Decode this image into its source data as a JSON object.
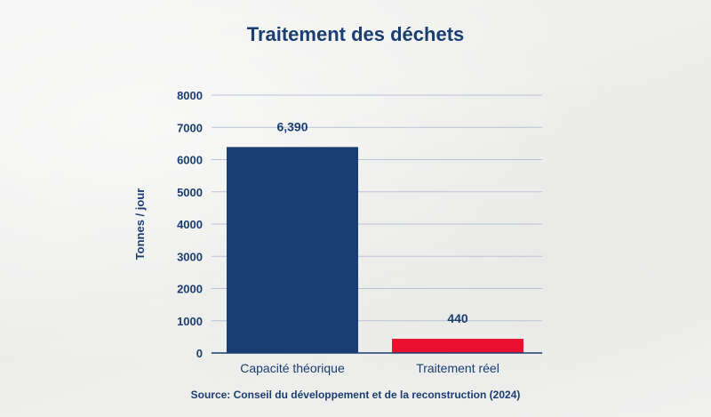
{
  "chart_data": {
    "type": "bar",
    "title": "Traitement des déchets",
    "xlabel": "",
    "ylabel": "Tonnes / jour",
    "categories": [
      "Capacité théorique",
      "Traitement réel"
    ],
    "values": [
      6390,
      440
    ],
    "value_labels": [
      "6,390",
      "440"
    ],
    "colors": [
      "#1a3e72",
      "#e8102e"
    ],
    "ylim": [
      0,
      8000
    ],
    "yticks": [
      0,
      1000,
      2000,
      3000,
      4000,
      5000,
      6000,
      7000,
      8000
    ],
    "grid": true,
    "source": "Source: Conseil du développement et de la reconstruction (2024)"
  }
}
